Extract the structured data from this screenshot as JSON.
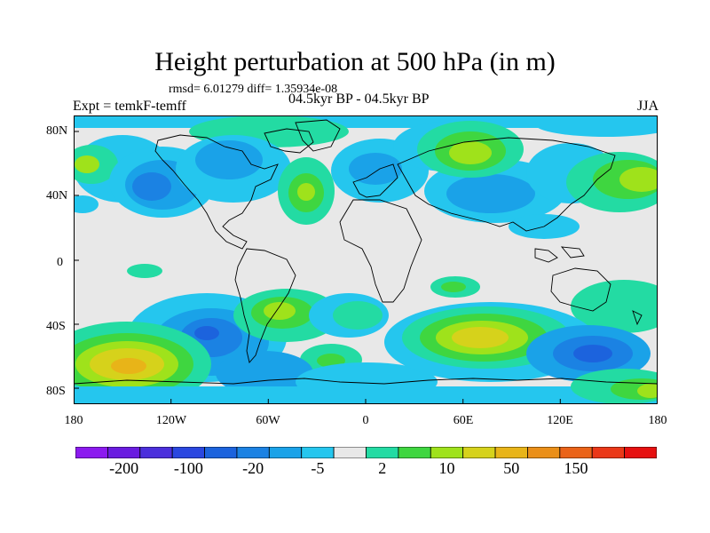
{
  "title": "Height perturbation at 500 hPa (in m)",
  "stats_text": "rmsd= 6.01279 diff= 1.35934e-08",
  "expt_text": "Expt = temkF-temff",
  "period_text": "04.5kyr BP - 04.5kyr BP",
  "season_text": "JJA",
  "x_ticks": [
    "180",
    "120W",
    "60W",
    "0",
    "60E",
    "120E",
    "180"
  ],
  "y_ticks": [
    "80N",
    "40N",
    "0",
    "40S",
    "80S"
  ],
  "colorbar": {
    "colors": [
      "#8c1aef",
      "#6a1ce0",
      "#4b2fdc",
      "#2a47e0",
      "#1c63dd",
      "#1b82e3",
      "#1aa2e8",
      "#25c6ee",
      "#e8e8e8",
      "#23dba3",
      "#3fd640",
      "#9fe21b",
      "#d6d21b",
      "#e8b418",
      "#ea8f18",
      "#ea6318",
      "#ea3818",
      "#e61010"
    ],
    "labels": [
      "-200",
      "-100",
      "-20",
      "-5",
      "2",
      "10",
      "50",
      "150"
    ]
  }
}
